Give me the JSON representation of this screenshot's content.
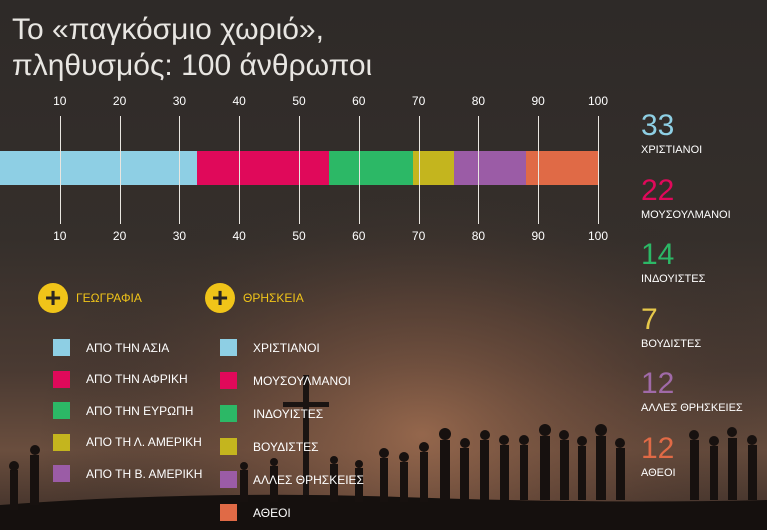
{
  "title_line1": "Το «παγκόσμιο χωριό»,",
  "title_line2": "πληθυσμός: 100 άνθρωποι",
  "chart_data": {
    "type": "bar",
    "orientation": "horizontal-stacked",
    "axis_ticks": [
      "10",
      "20",
      "30",
      "40",
      "50",
      "60",
      "70",
      "80",
      "90",
      "100"
    ],
    "xlim": [
      0,
      100
    ],
    "series": [
      {
        "name": "ΧΡΙΣΤΙΑΝΟΙ",
        "value": 33,
        "color": "#8ecfe4"
      },
      {
        "name": "ΜΟΥΣΟΥΛΜΑΝΟΙ",
        "value": 22,
        "color": "#e0095a"
      },
      {
        "name": "ΙΝΔΟΥΙΣΤΕΣ",
        "value": 14,
        "color": "#2cb866"
      },
      {
        "name": "ΒΟΥΔΙΣΤΕΣ",
        "value": 7,
        "color": "#c4b51e"
      },
      {
        "name": "ΑΛΛΕΣ ΘΡΗΣΚΕΙΕΣ",
        "value": 12,
        "color": "#9b5ca6"
      },
      {
        "name": "ΑΘΕΟΙ",
        "value": 12,
        "color": "#e06a46"
      }
    ]
  },
  "toggles": {
    "geography_label": "ΓΕΩΓΡΑΦΙΑ",
    "religion_label": "ΘΡΗΣΚΕΙΑ"
  },
  "geography_legend": [
    {
      "label": "ΑΠΟ ΤΗΝ ΑΣΙΑ",
      "color": "#8ecfe4"
    },
    {
      "label": "ΑΠΟ ΤΗΝ ΑΦΡΙΚΗ",
      "color": "#e0095a"
    },
    {
      "label": "ΑΠΟ ΤΗΝ ΕΥΡΩΠΗ",
      "color": "#2cb866"
    },
    {
      "label": "ΑΠΟ ΤΗ Λ. ΑΜΕΡΙΚΗ",
      "color": "#c4b51e"
    },
    {
      "label": "ΑΠΟ ΤΗ Β. ΑΜΕΡΙΚΗ",
      "color": "#9b5ca6"
    }
  ],
  "religion_legend": [
    {
      "label": "ΧΡΙΣΤΙΑΝΟΙ",
      "color": "#8ecfe4"
    },
    {
      "label": "ΜΟΥΣΟΥΛΜΑΝΟΙ",
      "color": "#e0095a"
    },
    {
      "label": "ΙΝΔΟΥΙΣΤΕΣ",
      "color": "#2cb866"
    },
    {
      "label": "ΒΟΥΔΙΣΤΕΣ",
      "color": "#c4b51e"
    },
    {
      "label": "ΑΛΛΕΣ ΘΡΗΣΚΕΙΕΣ",
      "color": "#9b5ca6"
    },
    {
      "label": "ΑΘΕΟΙ",
      "color": "#e06a46"
    }
  ],
  "stats": [
    {
      "number": "33",
      "label": "ΧΡΙΣΤΙΑΝΟΙ",
      "color": "#8ecfe4"
    },
    {
      "number": "22",
      "label": "ΜΟΥΣΟΥΛΜΑΝΟΙ",
      "color": "#e0095a"
    },
    {
      "number": "14",
      "label": "ΙΝΔΟΥΙΣΤΕΣ",
      "color": "#2cb866"
    },
    {
      "number": "7",
      "label": "ΒΟΥΔΙΣΤΕΣ",
      "color": "#e6c84a"
    },
    {
      "number": "12",
      "label": "ΑΛΛΕΣ ΘΡΗΣΚΕΙΕΣ",
      "color": "#a06aa8"
    },
    {
      "number": "12",
      "label": "ΑΘΕΟΙ",
      "color": "#e06a46"
    }
  ]
}
